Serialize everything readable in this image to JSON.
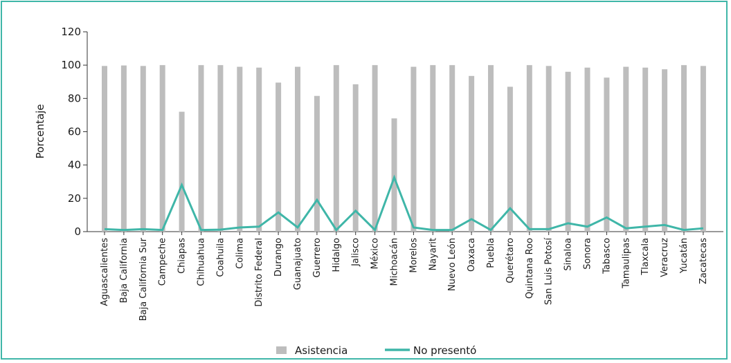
{
  "chart_data": {
    "type": "bar",
    "ylabel": "Porcentaje",
    "xlabel": "",
    "ylim": [
      0,
      120
    ],
    "yticks": [
      0,
      20,
      40,
      60,
      80,
      100,
      120
    ],
    "legend_position": "bottom",
    "categories": [
      "Aguascalientes",
      "Baja California",
      "Baja California Sur",
      "Campeche",
      "Chiapas",
      "Chihuahua",
      "Coahuila",
      "Colima",
      "Distrito Federal",
      "Durango",
      "Guanajuato",
      "Guerrero",
      "Hidalgo",
      "Jalisco",
      "México",
      "Michoacán",
      "Morelos",
      "Nayarit",
      "Nuevo León",
      "Oaxaca",
      "Puebla",
      "Querétaro",
      "Quintana Roo",
      "San Luis Potosí",
      "Sinaloa",
      "Sonora",
      "Tabasco",
      "Tamaulipas",
      "Tlaxcala",
      "Veracruz",
      "Yucatán",
      "Zacatecas"
    ],
    "series": [
      {
        "name": "Asistencia",
        "kind": "bar",
        "color": "#bdbdbd",
        "values": [
          99.5,
          99.8,
          99.5,
          100,
          72,
          100,
          100,
          99,
          98.5,
          89.5,
          99,
          81.5,
          100,
          88.5,
          100,
          68,
          99,
          100,
          100,
          93.5,
          100,
          87,
          100,
          99.5,
          96,
          98.5,
          92.5,
          99,
          98.5,
          97.5,
          100,
          99.5
        ]
      },
      {
        "name": "No presentó",
        "kind": "line",
        "color": "#3fb6a8",
        "values": [
          1.5,
          1,
          1.5,
          1,
          28,
          1,
          1.2,
          2.5,
          3,
          11.5,
          2.5,
          19,
          1,
          12.5,
          1,
          32.5,
          2.5,
          1,
          1,
          7.5,
          1,
          14,
          1.5,
          1.5,
          5,
          3,
          8.5,
          2,
          3,
          4,
          1,
          2
        ]
      }
    ]
  }
}
